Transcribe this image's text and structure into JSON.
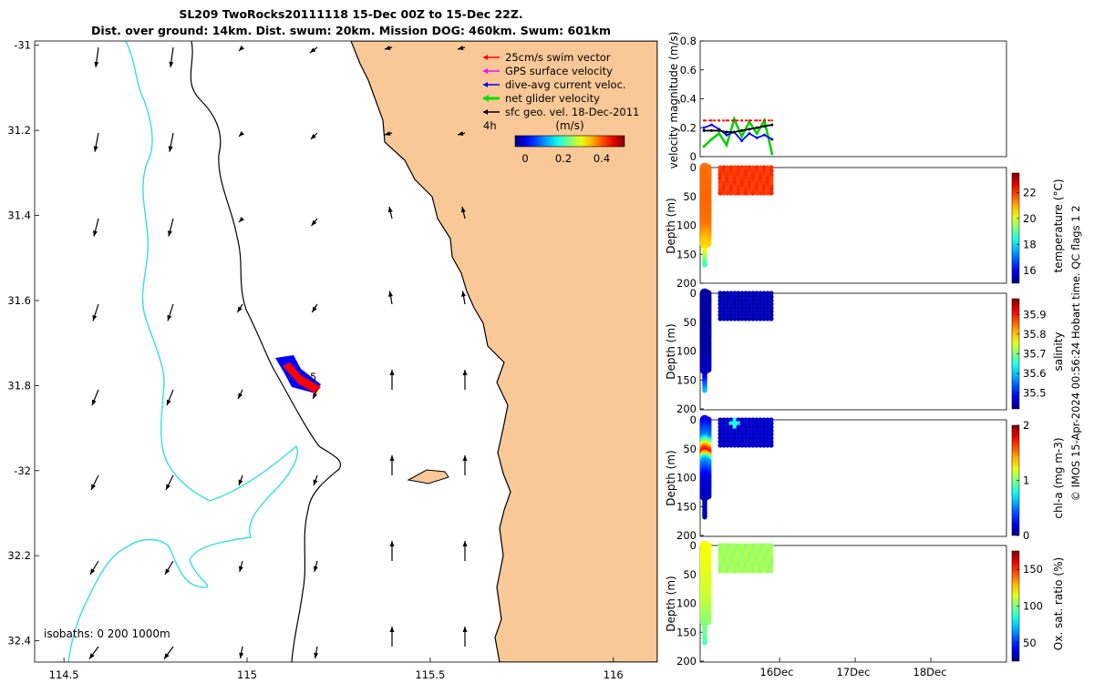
{
  "title": {
    "line1": "SL209 TwoRocks20111118 15-Dec 00Z to 15-Dec 22Z.",
    "line2": "Dist. over ground: 14km. Dist. swum: 20km. Mission DOG: 460km. Swum: 601km"
  },
  "map": {
    "x_ticks": [
      {
        "label": "114.5",
        "v": 114.5
      },
      {
        "label": "115",
        "v": 115.0
      },
      {
        "label": "115.5",
        "v": 115.5
      },
      {
        "label": "116",
        "v": 116.0
      }
    ],
    "y_ticks": [
      {
        "label": "-31",
        "v": -31.0
      },
      {
        "label": "31.2",
        "v": -31.2
      },
      {
        "label": "31.4",
        "v": -31.4
      },
      {
        "label": "31.6",
        "v": -31.6
      },
      {
        "label": "31.8",
        "v": -31.8
      },
      {
        "label": "-32",
        "v": -32.0
      },
      {
        "label": "32.2",
        "v": -32.2
      },
      {
        "label": "32.4",
        "v": -32.4
      }
    ],
    "legend": [
      {
        "label": "25cm/s swim vector",
        "color": "#ff0000"
      },
      {
        "label": "GPS surface velocity",
        "color": "#ff00ff"
      },
      {
        "label": "dive-avg current veloc.",
        "color": "#0000ff"
      },
      {
        "label": "net glider velocity",
        "color": "#00e000"
      },
      {
        "label": "sfc geo. vel. 18-Dec-2011",
        "color": "#000000"
      }
    ],
    "time_label": "4h",
    "colorbar_title": "(m/s)",
    "colorbar_ticks": [
      "0",
      "0.2",
      "0.4"
    ],
    "isobaths_label": "isobaths: 0   200  1000m",
    "track_label": "5",
    "land_color": "#f9c897",
    "isobath_color": "#33e0e0"
  },
  "chart_data": [
    {
      "type": "line",
      "title": "",
      "ylabel": "velocity magnitude (m/s)",
      "ylim": [
        0,
        0.8
      ],
      "y_ticks": [
        "0",
        "0.2",
        "0.4",
        "0.6",
        "0.8"
      ],
      "x": [
        15.0,
        15.1,
        15.2,
        15.3,
        15.4,
        15.5,
        15.6,
        15.7,
        15.8,
        15.9
      ],
      "series": [
        {
          "name": "net glider velocity",
          "color": "#00d000",
          "values": [
            0.07,
            0.12,
            0.16,
            0.08,
            0.26,
            0.14,
            0.24,
            0.16,
            0.25,
            0.02
          ]
        },
        {
          "name": "dive-avg current veloc.",
          "color": "#0000ff",
          "values": [
            0.2,
            0.22,
            0.19,
            0.15,
            0.17,
            0.11,
            0.16,
            0.13,
            0.15,
            0.12
          ]
        },
        {
          "name": "sfc geo. vel.",
          "color": "#000000",
          "values": [
            0.18,
            0.18,
            0.18,
            0.17,
            0.17,
            0.18,
            0.19,
            0.2,
            0.21,
            0.22
          ]
        },
        {
          "name": "25cm/s swim vector",
          "color": "#ff0000",
          "values": [
            0.25,
            0.25,
            0.25,
            0.25,
            0.25,
            0.25,
            0.25,
            0.25,
            0.25,
            0.25
          ]
        }
      ]
    },
    {
      "type": "heatmap",
      "variable": "temperature",
      "cbar_label": "temperature (°C)",
      "cbar_ticks": [
        "16",
        "18",
        "20",
        "22"
      ],
      "clim": [
        15,
        23.5
      ],
      "ylabel": "Depth (m)",
      "ylim": [
        200,
        0
      ],
      "y_ticks": [
        "0",
        "50",
        "100",
        "150",
        "200"
      ],
      "profile_depth": [
        0,
        50,
        100,
        140,
        170
      ],
      "profile_values": [
        21.5,
        21.6,
        21.5,
        20.5,
        18.5
      ],
      "block_value": 22.0
    },
    {
      "type": "heatmap",
      "variable": "salinity",
      "cbar_label": "salinity",
      "cbar_ticks": [
        "35.5",
        "35.6",
        "35.7",
        "35.8",
        "35.9"
      ],
      "clim": [
        35.42,
        35.98
      ],
      "ylabel": "Depth (m)",
      "ylim": [
        200,
        0
      ],
      "y_ticks": [
        "0",
        "50",
        "100",
        "150",
        "200"
      ],
      "profile_depth": [
        0,
        50,
        100,
        140,
        170
      ],
      "profile_values": [
        35.44,
        35.44,
        35.44,
        35.46,
        35.6
      ],
      "block_value": 35.45
    },
    {
      "type": "heatmap",
      "variable": "chl-a",
      "cbar_label": "chl-a (mg m-3)",
      "cbar_ticks": [
        "0",
        "1",
        "2"
      ],
      "clim": [
        0,
        2
      ],
      "ylabel": "Depth (m)",
      "ylim": [
        200,
        0
      ],
      "y_ticks": [
        "0",
        "50",
        "100",
        "150",
        "200"
      ],
      "profile_depth": [
        0,
        30,
        55,
        70,
        100,
        150,
        170
      ],
      "profile_values": [
        0.2,
        0.5,
        1.8,
        0.6,
        0.2,
        0.1,
        0.1
      ],
      "block_value": 0.15
    },
    {
      "type": "heatmap",
      "variable": "oxygen saturation",
      "cbar_label": "Ox. sat. ratio (%)",
      "cbar_ticks": [
        "50",
        "100",
        "150"
      ],
      "clim": [
        25,
        175
      ],
      "ylabel": "Depth (m)",
      "ylim": [
        200,
        0
      ],
      "y_ticks": [
        "0",
        "50",
        "100",
        "150",
        "200"
      ],
      "profile_depth": [
        0,
        50,
        100,
        140,
        170
      ],
      "profile_values": [
        118,
        115,
        110,
        100,
        92
      ],
      "block_value": 105
    }
  ],
  "time_axis": {
    "labels": [
      "16Dec",
      "17Dec",
      "18Dec"
    ]
  },
  "side_note": "© IMOS 15-Apr-2024 00:56:24 Hobart time. QC flags 1  2"
}
